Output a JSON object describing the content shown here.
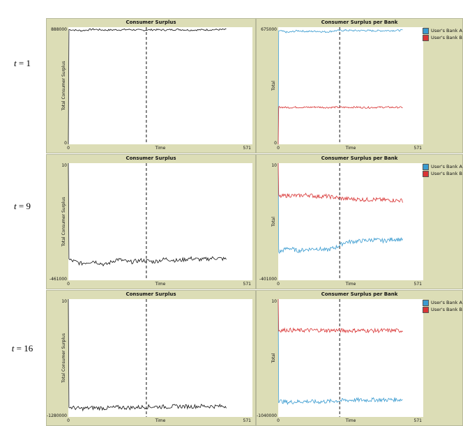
{
  "row_labels": [
    {
      "var": "t",
      "value": "1"
    },
    {
      "var": "t",
      "value": "9"
    },
    {
      "var": "t",
      "value": "16"
    }
  ],
  "colors": {
    "bankA": "#3a9bd0",
    "bankB": "#d93535",
    "total": "#111111",
    "panel_bg": "#dcddb6"
  },
  "legend": [
    "User's Bank A",
    "User's Bank B"
  ],
  "chart_data": [
    {
      "type": "line",
      "title": "Consumer Surplus",
      "xlabel": "Time",
      "ylabel": "Total Consumer Surplus",
      "x_ticks": [
        "0",
        "571"
      ],
      "y_ticks": [
        "888000",
        "0"
      ],
      "xlim": [
        0,
        571
      ],
      "ylim": [
        0,
        888000
      ],
      "marker_x": 242,
      "series": [
        {
          "color": "#111111",
          "x_start": 0,
          "x_end": 490,
          "values": [
            0,
            870000,
            862000,
            872000,
            866000,
            868000,
            870000,
            865000,
            869000,
            867000,
            871000,
            866000,
            868000,
            869000,
            870000
          ]
        }
      ]
    },
    {
      "type": "line",
      "title": "Consumer Surplus per Bank",
      "xlabel": "Time",
      "ylabel": "Total",
      "x_ticks": [
        "0",
        "571"
      ],
      "y_ticks": [
        "675000",
        "0"
      ],
      "xlim": [
        0,
        571
      ],
      "ylim": [
        0,
        675000
      ],
      "marker_x": 242,
      "series": [
        {
          "name": "User's Bank A",
          "color": "#3a9bd0",
          "x_start": 0,
          "x_end": 490,
          "values": [
            0,
            655000,
            645000,
            655000,
            650000,
            652000,
            648000,
            655000,
            657000,
            655000,
            656000,
            654000,
            655000,
            656000,
            657000
          ]
        },
        {
          "name": "User's Bank B",
          "color": "#d93535",
          "x_start": 0,
          "x_end": 490,
          "values": [
            0,
            215000,
            212000,
            214000,
            213000,
            215000,
            212000,
            214000,
            213000,
            214000,
            212000,
            213000,
            214000,
            213000,
            213000
          ]
        }
      ]
    },
    {
      "type": "line",
      "title": "Consumer Surplus",
      "xlabel": "Time",
      "ylabel": "Total Consumer Surplus",
      "x_ticks": [
        "0",
        "571"
      ],
      "y_ticks": [
        "10",
        "-461000"
      ],
      "xlim": [
        0,
        571
      ],
      "ylim": [
        -461000,
        10
      ],
      "marker_x": 242,
      "series": [
        {
          "color": "#111111",
          "x_start": 0,
          "x_end": 490,
          "values": [
            0,
            -380000,
            -395000,
            -385000,
            -400000,
            -378000,
            -390000,
            -382000,
            -388000,
            -377000,
            -384000,
            -375000,
            -380000,
            -373000,
            -378000
          ]
        }
      ]
    },
    {
      "type": "line",
      "title": "Consumer Surplus per Bank",
      "xlabel": "Time",
      "ylabel": "Total",
      "x_ticks": [
        "0",
        "571"
      ],
      "y_ticks": [
        "10",
        "-401000"
      ],
      "xlim": [
        0,
        571
      ],
      "ylim": [
        -401000,
        10
      ],
      "marker_x": 242,
      "series": [
        {
          "name": "User's Bank A",
          "color": "#3a9bd0",
          "x_start": 0,
          "x_end": 490,
          "values": [
            0,
            -305000,
            -290000,
            -300000,
            -295000,
            -292000,
            -298000,
            -288000,
            -270000,
            -268000,
            -265000,
            -262000,
            -266000,
            -260000,
            -262000
          ]
        },
        {
          "name": "User's Bank B",
          "color": "#d93535",
          "x_start": 0,
          "x_end": 490,
          "values": [
            0,
            -115000,
            -110000,
            -112000,
            -108000,
            -114000,
            -113000,
            -118000,
            -122000,
            -123000,
            -125000,
            -124000,
            -126000,
            -127000,
            -128000
          ]
        }
      ]
    },
    {
      "type": "line",
      "title": "Consumer Surplus",
      "xlabel": "Time",
      "ylabel": "Total Consumer Surplus",
      "x_ticks": [
        "0",
        "571"
      ],
      "y_ticks": [
        "10",
        "-1280000"
      ],
      "xlim": [
        0,
        571
      ],
      "ylim": [
        -1280000,
        10
      ],
      "marker_x": 242,
      "series": [
        {
          "color": "#111111",
          "x_start": 0,
          "x_end": 490,
          "values": [
            0,
            -1175000,
            -1190000,
            -1180000,
            -1185000,
            -1175000,
            -1180000,
            -1172000,
            -1168000,
            -1170000,
            -1165000,
            -1167000,
            -1162000,
            -1165000,
            -1163000
          ]
        }
      ]
    },
    {
      "type": "line",
      "title": "Consumer Surplus per Bank",
      "xlabel": "Time",
      "ylabel": "Total",
      "x_ticks": [
        "0",
        "571"
      ],
      "y_ticks": [
        "10",
        "-1040000"
      ],
      "xlim": [
        0,
        571
      ],
      "ylim": [
        -1040000,
        10
      ],
      "marker_x": 242,
      "series": [
        {
          "name": "User's Bank A",
          "color": "#3a9bd0",
          "x_start": 0,
          "x_end": 490,
          "values": [
            0,
            -900000,
            -910000,
            -905000,
            -902000,
            -908000,
            -903000,
            -898000,
            -893000,
            -890000,
            -892000,
            -888000,
            -890000,
            -887000,
            -888000
          ]
        },
        {
          "name": "User's Bank B",
          "color": "#d93535",
          "x_start": 0,
          "x_end": 490,
          "values": [
            0,
            -275000,
            -272000,
            -277000,
            -275000,
            -274000,
            -276000,
            -275000,
            -278000,
            -277000,
            -276000,
            -279000,
            -277000,
            -278000,
            -279000
          ]
        }
      ]
    }
  ]
}
